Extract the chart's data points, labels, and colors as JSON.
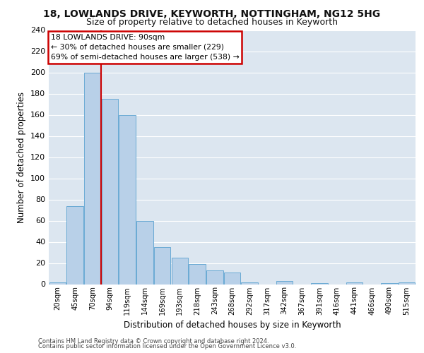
{
  "title1": "18, LOWLANDS DRIVE, KEYWORTH, NOTTINGHAM, NG12 5HG",
  "title2": "Size of property relative to detached houses in Keyworth",
  "xlabel": "Distribution of detached houses by size in Keyworth",
  "ylabel": "Number of detached properties",
  "footer1": "Contains HM Land Registry data © Crown copyright and database right 2024.",
  "footer2": "Contains public sector information licensed under the Open Government Licence v3.0.",
  "bar_labels": [
    "20sqm",
    "45sqm",
    "70sqm",
    "94sqm",
    "119sqm",
    "144sqm",
    "169sqm",
    "193sqm",
    "218sqm",
    "243sqm",
    "268sqm",
    "292sqm",
    "317sqm",
    "342sqm",
    "367sqm",
    "391sqm",
    "416sqm",
    "441sqm",
    "466sqm",
    "490sqm",
    "515sqm"
  ],
  "bar_values": [
    2,
    74,
    200,
    175,
    160,
    60,
    35,
    25,
    19,
    13,
    11,
    2,
    0,
    3,
    0,
    1,
    0,
    2,
    0,
    1,
    2
  ],
  "bar_color": "#b8d0e8",
  "bar_edge_color": "#6aaad4",
  "vline_color": "#cc0000",
  "annotation_text": "18 LOWLANDS DRIVE: 90sqm\n← 30% of detached houses are smaller (229)\n69% of semi-detached houses are larger (538) →",
  "annotation_box_facecolor": "#ffffff",
  "annotation_box_edgecolor": "#cc0000",
  "ylim": [
    0,
    240
  ],
  "yticks": [
    0,
    20,
    40,
    60,
    80,
    100,
    120,
    140,
    160,
    180,
    200,
    220,
    240
  ],
  "grid_color": "#ffffff",
  "plot_bg": "#dce6f0",
  "fig_bg": "#ffffff"
}
